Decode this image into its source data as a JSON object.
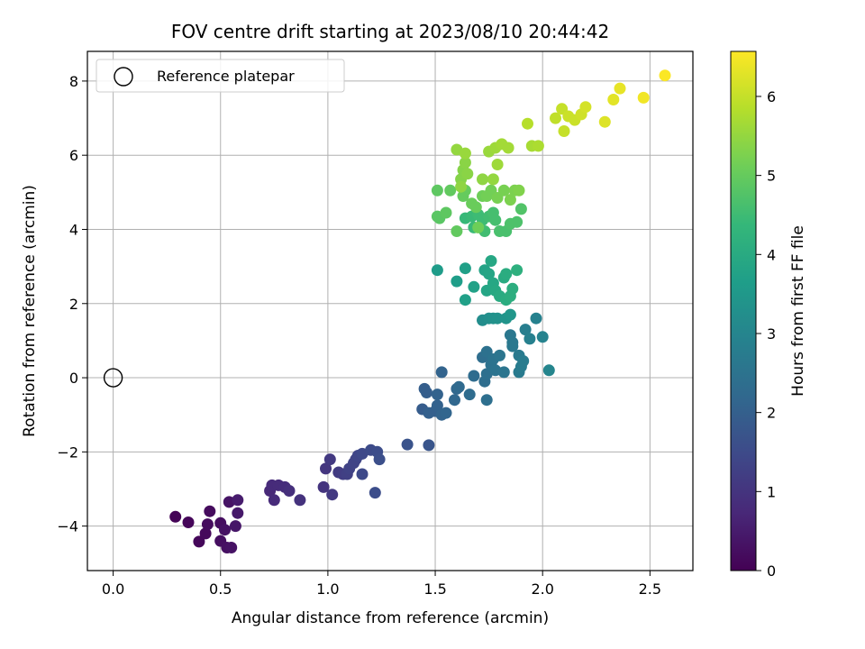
{
  "chart_data": {
    "type": "scatter",
    "title": "FOV centre drift starting at 2023/08/10 20:44:42",
    "xlabel": "Angular distance from reference (arcmin)",
    "ylabel": "Rotation from reference (arcmin)",
    "xlim": [
      -0.12,
      2.7
    ],
    "ylim": [
      -5.2,
      8.8
    ],
    "xticks": [
      0.0,
      0.5,
      1.0,
      1.5,
      2.0,
      2.5
    ],
    "xtick_labels": [
      "0.0",
      "0.5",
      "1.0",
      "1.5",
      "2.0",
      "2.5"
    ],
    "yticks": [
      -4,
      -2,
      0,
      2,
      4,
      6,
      8
    ],
    "ytick_labels": [
      "−4",
      "−2",
      "0",
      "2",
      "4",
      "6",
      "8"
    ],
    "grid": true,
    "legend": {
      "position": "top-left",
      "entries": [
        "Reference platepar"
      ]
    },
    "reference_point": {
      "x": 0.0,
      "y": 0.0,
      "marker": "open-circle"
    },
    "colorbar": {
      "label": "Hours from first FF file",
      "colormap": "viridis",
      "range": [
        0,
        6.57
      ],
      "ticks": [
        0,
        1,
        2,
        3,
        4,
        5,
        6
      ],
      "tick_labels": [
        "0",
        "1",
        "2",
        "3",
        "4",
        "5",
        "6"
      ]
    },
    "colormap_stops": [
      "#440154",
      "#482878",
      "#3e4989",
      "#31688e",
      "#26828e",
      "#1f9e89",
      "#35b779",
      "#6ece58",
      "#b5de2b",
      "#fde725"
    ],
    "points": [
      [
        0.29,
        -3.75,
        0.05
      ],
      [
        0.35,
        -3.9,
        0.1
      ],
      [
        0.4,
        -4.42,
        0.12
      ],
      [
        0.43,
        -4.2,
        0.15
      ],
      [
        0.45,
        -3.6,
        0.18
      ],
      [
        0.44,
        -3.95,
        0.2
      ],
      [
        0.5,
        -3.92,
        0.22
      ],
      [
        0.5,
        -4.4,
        0.25
      ],
      [
        0.53,
        -4.58,
        0.28
      ],
      [
        0.52,
        -4.1,
        0.3
      ],
      [
        0.55,
        -4.58,
        0.32
      ],
      [
        0.54,
        -3.35,
        0.35
      ],
      [
        0.57,
        -4.0,
        0.4
      ],
      [
        0.58,
        -3.65,
        0.45
      ],
      [
        0.58,
        -3.3,
        0.5
      ],
      [
        0.73,
        -3.05,
        0.75
      ],
      [
        0.74,
        -2.9,
        0.8
      ],
      [
        0.75,
        -3.3,
        0.8
      ],
      [
        0.77,
        -2.9,
        0.82
      ],
      [
        0.8,
        -2.95,
        0.85
      ],
      [
        0.82,
        -3.05,
        0.9
      ],
      [
        0.87,
        -3.3,
        0.95
      ],
      [
        0.98,
        -2.95,
        1.0
      ],
      [
        0.99,
        -2.45,
        1.05
      ],
      [
        1.01,
        -2.2,
        1.1
      ],
      [
        1.02,
        -3.15,
        1.1
      ],
      [
        1.05,
        -2.55,
        1.15
      ],
      [
        1.07,
        -2.6,
        1.2
      ],
      [
        1.09,
        -2.6,
        1.25
      ],
      [
        1.1,
        -2.45,
        1.3
      ],
      [
        1.12,
        -2.3,
        1.35
      ],
      [
        1.13,
        -2.2,
        1.35
      ],
      [
        1.14,
        -2.1,
        1.4
      ],
      [
        1.16,
        -2.05,
        1.45
      ],
      [
        1.16,
        -2.6,
        1.45
      ],
      [
        1.2,
        -1.95,
        1.5
      ],
      [
        1.22,
        -3.1,
        1.55
      ],
      [
        1.23,
        -2.0,
        1.55
      ],
      [
        1.24,
        -2.2,
        1.6
      ],
      [
        1.37,
        -1.8,
        1.7
      ],
      [
        1.47,
        -1.82,
        1.75
      ],
      [
        1.44,
        -0.85,
        1.9
      ],
      [
        1.45,
        -0.3,
        1.95
      ],
      [
        1.46,
        -0.4,
        1.95
      ],
      [
        1.47,
        -0.95,
        2.0
      ],
      [
        1.5,
        -0.9,
        2.0
      ],
      [
        1.51,
        -0.45,
        2.05
      ],
      [
        1.51,
        -0.75,
        2.05
      ],
      [
        1.53,
        -1.0,
        2.1
      ],
      [
        1.53,
        0.15,
        2.1
      ],
      [
        1.55,
        -0.95,
        2.15
      ],
      [
        1.59,
        -0.6,
        2.2
      ],
      [
        1.6,
        -0.3,
        2.2
      ],
      [
        1.61,
        -0.25,
        2.25
      ],
      [
        1.66,
        -0.45,
        2.3
      ],
      [
        1.68,
        0.05,
        2.3
      ],
      [
        1.72,
        0.55,
        2.35
      ],
      [
        1.73,
        -0.1,
        2.35
      ],
      [
        1.74,
        -0.6,
        2.4
      ],
      [
        1.74,
        0.1,
        2.4
      ],
      [
        1.74,
        0.7,
        2.45
      ],
      [
        1.76,
        0.35,
        2.45
      ],
      [
        1.77,
        0.5,
        2.5
      ],
      [
        1.78,
        0.2,
        2.5
      ],
      [
        1.8,
        0.6,
        2.55
      ],
      [
        1.82,
        0.15,
        2.55
      ],
      [
        1.85,
        1.15,
        2.6
      ],
      [
        1.86,
        0.85,
        2.65
      ],
      [
        1.86,
        0.95,
        2.65
      ],
      [
        1.89,
        0.6,
        2.7
      ],
      [
        1.89,
        0.15,
        2.7
      ],
      [
        1.9,
        0.3,
        2.75
      ],
      [
        1.91,
        0.45,
        2.75
      ],
      [
        1.92,
        1.3,
        2.8
      ],
      [
        1.94,
        1.05,
        2.85
      ],
      [
        1.97,
        1.6,
        2.9
      ],
      [
        2.0,
        1.1,
        2.95
      ],
      [
        2.03,
        0.2,
        3.0
      ],
      [
        1.72,
        1.55,
        3.2
      ],
      [
        1.75,
        1.6,
        3.25
      ],
      [
        1.77,
        1.6,
        3.3
      ],
      [
        1.79,
        1.6,
        3.35
      ],
      [
        1.83,
        1.6,
        3.4
      ],
      [
        1.85,
        1.7,
        3.45
      ],
      [
        1.51,
        2.9,
        3.6
      ],
      [
        1.6,
        2.6,
        3.65
      ],
      [
        1.64,
        2.1,
        3.7
      ],
      [
        1.64,
        2.95,
        3.7
      ],
      [
        1.68,
        2.45,
        3.75
      ],
      [
        1.73,
        2.9,
        3.8
      ],
      [
        1.74,
        2.35,
        3.85
      ],
      [
        1.75,
        2.8,
        3.85
      ],
      [
        1.76,
        3.15,
        3.9
      ],
      [
        1.77,
        2.55,
        3.9
      ],
      [
        1.78,
        2.35,
        3.95
      ],
      [
        1.8,
        2.2,
        4.0
      ],
      [
        1.82,
        2.7,
        4.0
      ],
      [
        1.83,
        2.1,
        4.05
      ],
      [
        1.83,
        2.8,
        4.05
      ],
      [
        1.85,
        2.2,
        4.1
      ],
      [
        1.86,
        2.4,
        4.1
      ],
      [
        1.88,
        2.9,
        4.15
      ],
      [
        1.64,
        4.3,
        4.4
      ],
      [
        1.67,
        4.35,
        4.45
      ],
      [
        1.68,
        4.05,
        4.45
      ],
      [
        1.7,
        4.4,
        4.5
      ],
      [
        1.72,
        4.25,
        4.5
      ],
      [
        1.73,
        3.95,
        4.55
      ],
      [
        1.75,
        4.35,
        4.55
      ],
      [
        1.77,
        4.45,
        4.6
      ],
      [
        1.78,
        4.25,
        4.6
      ],
      [
        1.8,
        3.95,
        4.65
      ],
      [
        1.83,
        3.95,
        4.65
      ],
      [
        1.85,
        4.15,
        4.7
      ],
      [
        1.88,
        4.2,
        4.7
      ],
      [
        1.9,
        4.55,
        4.75
      ],
      [
        1.51,
        4.35,
        4.85
      ],
      [
        1.52,
        4.3,
        4.85
      ],
      [
        1.55,
        4.45,
        4.9
      ],
      [
        1.51,
        5.05,
        4.9
      ],
      [
        1.57,
        5.05,
        4.95
      ],
      [
        1.6,
        3.95,
        4.95
      ],
      [
        1.63,
        4.9,
        5.0
      ],
      [
        1.64,
        5.05,
        5.0
      ],
      [
        1.67,
        4.7,
        5.05
      ],
      [
        1.69,
        4.6,
        5.05
      ],
      [
        1.7,
        4.05,
        5.1
      ],
      [
        1.72,
        4.9,
        5.1
      ],
      [
        1.74,
        4.9,
        5.15
      ],
      [
        1.76,
        5.05,
        5.15
      ],
      [
        1.79,
        4.85,
        5.2
      ],
      [
        1.82,
        5.05,
        5.2
      ],
      [
        1.85,
        4.8,
        5.25
      ],
      [
        1.87,
        5.05,
        5.25
      ],
      [
        1.89,
        5.05,
        5.3
      ],
      [
        1.62,
        5.35,
        5.35
      ],
      [
        1.63,
        5.6,
        5.35
      ],
      [
        1.64,
        5.8,
        5.4
      ],
      [
        1.65,
        5.5,
        5.4
      ],
      [
        1.62,
        5.15,
        5.45
      ],
      [
        1.72,
        5.35,
        5.45
      ],
      [
        1.77,
        5.35,
        5.5
      ],
      [
        1.6,
        6.15,
        5.5
      ],
      [
        1.64,
        6.05,
        5.55
      ],
      [
        1.75,
        6.1,
        5.55
      ],
      [
        1.78,
        6.2,
        5.6
      ],
      [
        1.79,
        5.75,
        5.6
      ],
      [
        1.81,
        6.3,
        5.65
      ],
      [
        1.84,
        6.2,
        5.65
      ],
      [
        1.95,
        6.25,
        5.7
      ],
      [
        1.98,
        6.25,
        5.75
      ],
      [
        1.93,
        6.85,
        5.85
      ],
      [
        2.06,
        7.0,
        5.95
      ],
      [
        2.09,
        7.25,
        6.0
      ],
      [
        2.1,
        6.65,
        6.0
      ],
      [
        2.12,
        7.05,
        6.05
      ],
      [
        2.15,
        6.95,
        6.05
      ],
      [
        2.18,
        7.1,
        6.1
      ],
      [
        2.2,
        7.3,
        6.15
      ],
      [
        2.29,
        6.9,
        6.25
      ],
      [
        2.33,
        7.5,
        6.3
      ],
      [
        2.36,
        7.8,
        6.35
      ],
      [
        2.47,
        7.55,
        6.45
      ],
      [
        2.57,
        8.15,
        6.55
      ]
    ]
  }
}
